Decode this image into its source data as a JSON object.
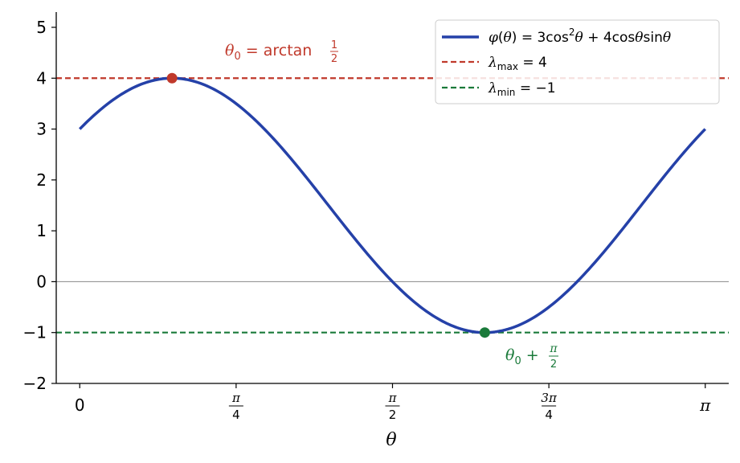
{
  "chart_data": {
    "type": "line",
    "title": "",
    "xlabel": "θ",
    "ylabel": "",
    "xlim": [
      -0.118,
      3.2596
    ],
    "ylim": [
      -2,
      5.3
    ],
    "grid": false,
    "legend_placement": "top-right",
    "yticks": [
      -2,
      -1,
      0,
      1,
      2,
      3,
      4,
      5
    ],
    "ytick_labels": [
      "−2",
      "−1",
      "0",
      "1",
      "2",
      "3",
      "4",
      "5"
    ],
    "xticks": [
      {
        "value": 0,
        "label": "0"
      },
      {
        "value": 0.7854,
        "label_num": "π",
        "label_den": "4"
      },
      {
        "value": 1.5708,
        "label_num": "π",
        "label_den": "2"
      },
      {
        "value": 2.3562,
        "label_num": "3π",
        "label_den": "4"
      },
      {
        "value": 3.14159,
        "label": "π"
      }
    ],
    "series": [
      {
        "name": "φ(θ) = 3cos²θ + 4cosθsinθ",
        "color": "#2541a8",
        "function": "3cos^2(theta) + 4cos(theta)sin(theta)",
        "x_range": [
          0,
          3.14159
        ]
      }
    ],
    "reference_lines": [
      {
        "name": "λmax = 4",
        "y": 4,
        "color": "#c0392b",
        "style": "dashed"
      },
      {
        "name": "λmin = −1",
        "y": -1,
        "color": "#1a7a3a",
        "style": "dashed"
      },
      {
        "name": "zero",
        "y": 0,
        "color": "#888888",
        "style": "solid"
      }
    ],
    "points": [
      {
        "x": 0.4636,
        "y": 4,
        "color": "#c0392b"
      },
      {
        "x": 2.0344,
        "y": -1,
        "color": "#1a7a3a"
      }
    ],
    "annotations": [
      {
        "text": "θ₀ = arctan ½",
        "x": 0.4636,
        "y": 4,
        "color": "#c0392b"
      },
      {
        "text": "θ₀ + π/2",
        "x": 2.0344,
        "y": -1,
        "color": "#1a7a3a"
      }
    ]
  }
}
